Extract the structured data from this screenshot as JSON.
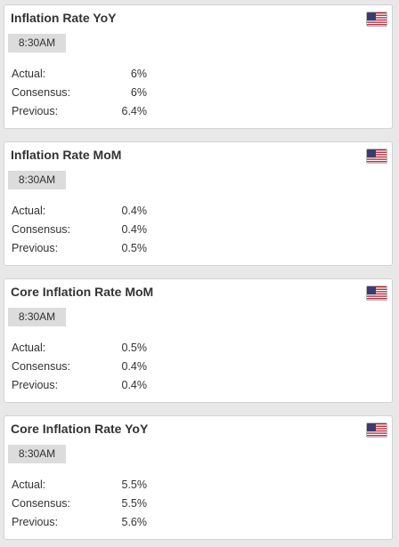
{
  "events": [
    {
      "title": "Inflation Rate YoY",
      "time": "8:30AM",
      "country_flag_icon": "us-flag-icon",
      "actual_label": "Actual:",
      "actual": "6%",
      "consensus_label": "Consensus:",
      "consensus": "6%",
      "previous_label": "Previous:",
      "previous": "6.4%"
    },
    {
      "title": "Inflation Rate MoM",
      "time": "8:30AM",
      "country_flag_icon": "us-flag-icon",
      "actual_label": "Actual:",
      "actual": "0.4%",
      "consensus_label": "Consensus:",
      "consensus": "0.4%",
      "previous_label": "Previous:",
      "previous": "0.5%"
    },
    {
      "title": "Core Inflation Rate MoM",
      "time": "8:30AM",
      "country_flag_icon": "us-flag-icon",
      "actual_label": "Actual:",
      "actual": "0.5%",
      "consensus_label": "Consensus:",
      "consensus": "0.4%",
      "previous_label": "Previous:",
      "previous": "0.4%"
    },
    {
      "title": "Core Inflation Rate YoY",
      "time": "8:30AM",
      "country_flag_icon": "us-flag-icon",
      "actual_label": "Actual:",
      "actual": "5.5%",
      "consensus_label": "Consensus:",
      "consensus": "5.5%",
      "previous_label": "Previous:",
      "previous": "5.6%"
    }
  ],
  "colors": {
    "page_background": "#e8e8e8",
    "card_background": "#ffffff",
    "card_border": "#d3d3d3",
    "time_badge_background": "#dcdcdc",
    "text": "#333333",
    "flag_red": "#b22234",
    "flag_blue": "#3c3b6e"
  }
}
